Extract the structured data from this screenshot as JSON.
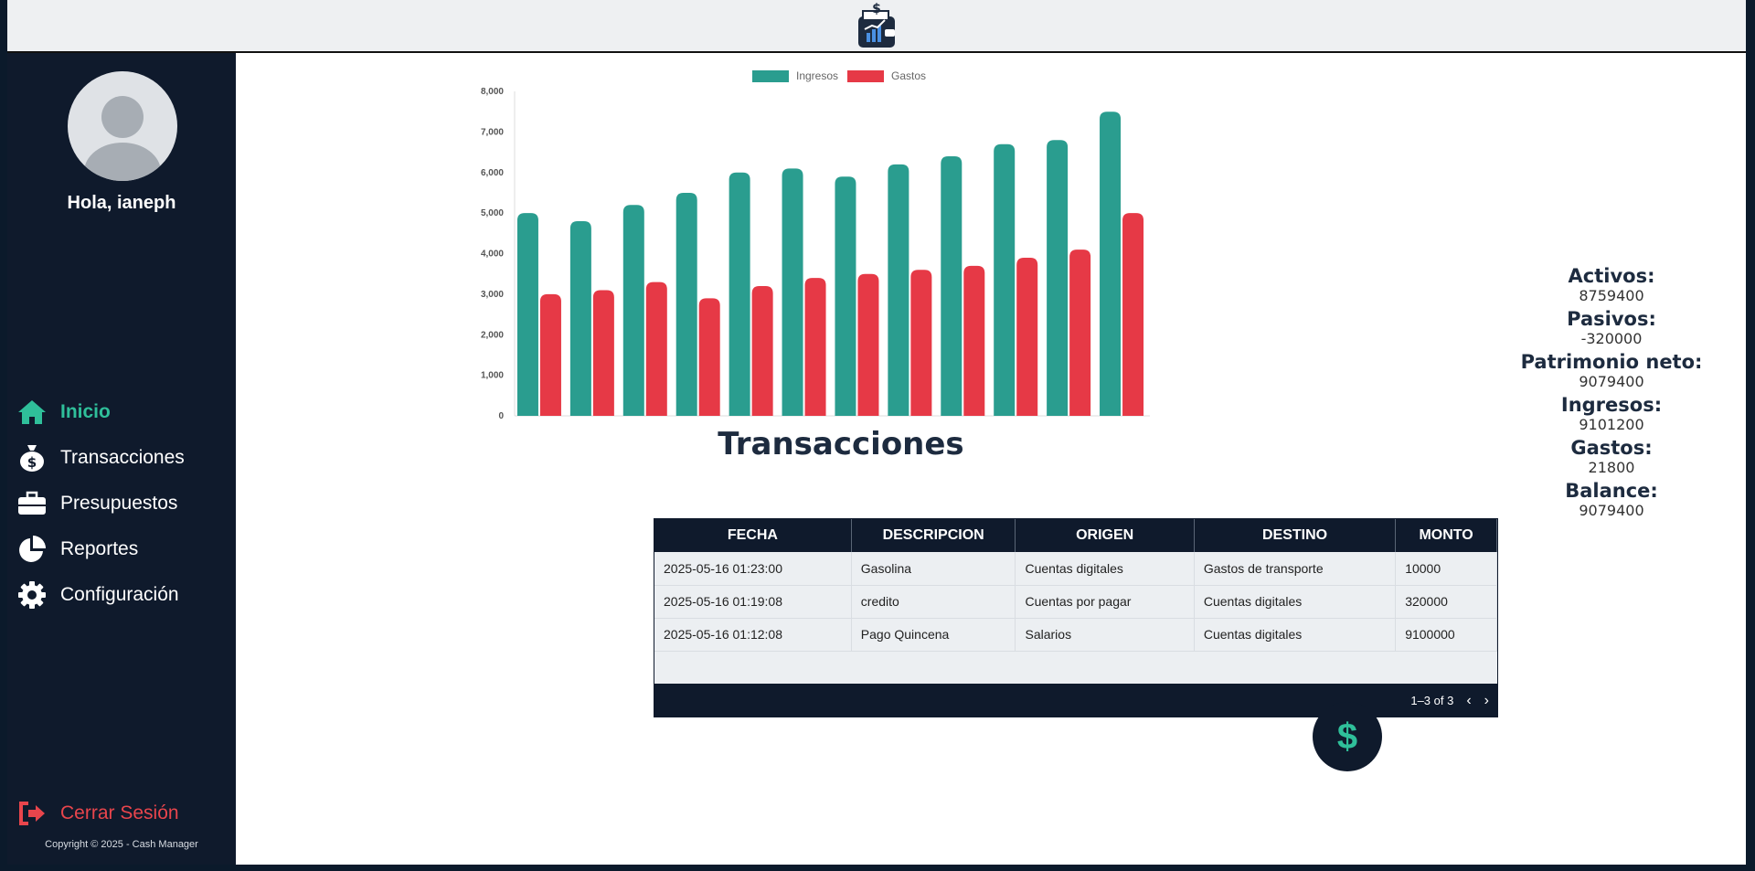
{
  "sidebar": {
    "greeting": "Hola, ianeph",
    "nav": [
      {
        "label": "Inicio",
        "icon": "home-icon",
        "active": true
      },
      {
        "label": "Transacciones",
        "icon": "money-bag-icon"
      },
      {
        "label": "Presupuestos",
        "icon": "briefcase-icon"
      },
      {
        "label": "Reportes",
        "icon": "pie-chart-icon"
      },
      {
        "label": "Configuración",
        "icon": "gear-icon"
      }
    ],
    "logout": "Cerrar Sesión",
    "copyright": "Copyright © 2025 - Cash Manager"
  },
  "chart_data": {
    "type": "bar",
    "categories": [
      "",
      "",
      "",
      "",
      "",
      "",
      "",
      "",
      "",
      "",
      "",
      ""
    ],
    "series": [
      {
        "name": "Ingresos",
        "color": "#2a9d8f",
        "values": [
          5000,
          4800,
          5200,
          5500,
          6000,
          6100,
          5900,
          6200,
          6400,
          6700,
          6800,
          7500
        ]
      },
      {
        "name": "Gastos",
        "color": "#e63946",
        "values": [
          3000,
          3100,
          3300,
          2900,
          3200,
          3400,
          3500,
          3600,
          3700,
          3900,
          4100,
          5000
        ]
      }
    ],
    "ylim": [
      0,
      8000
    ],
    "yticks": [
      "0",
      "1,000",
      "2,000",
      "3,000",
      "4,000",
      "5,000",
      "6,000",
      "7,000",
      "8,000"
    ],
    "legend": "top-center"
  },
  "transactions": {
    "title": "Transacciones",
    "columns": [
      "FECHA",
      "DESCRIPCION",
      "ORIGEN",
      "DESTINO",
      "MONTO"
    ],
    "rows": [
      [
        "2025-05-16 01:23:00",
        "Gasolina",
        "Cuentas digitales",
        "Gastos de transporte",
        "10000"
      ],
      [
        "2025-05-16 01:19:08",
        "credito",
        "Cuentas por pagar",
        "Cuentas digitales",
        "320000"
      ],
      [
        "2025-05-16 01:12:08",
        "Pago Quincena",
        "Salarios",
        "Cuentas digitales",
        "9100000"
      ]
    ],
    "pagination": "1–3 of 3"
  },
  "summary": [
    {
      "label": "Activos:",
      "value": "8759400"
    },
    {
      "label": "Pasivos:",
      "value": "-320000"
    },
    {
      "label": "Patrimonio neto:",
      "value": "9079400"
    },
    {
      "label": "Ingresos:",
      "value": "9101200"
    },
    {
      "label": "Gastos:",
      "value": "21800"
    },
    {
      "label": "Balance:",
      "value": "9079400"
    }
  ],
  "fab_symbol": "$"
}
